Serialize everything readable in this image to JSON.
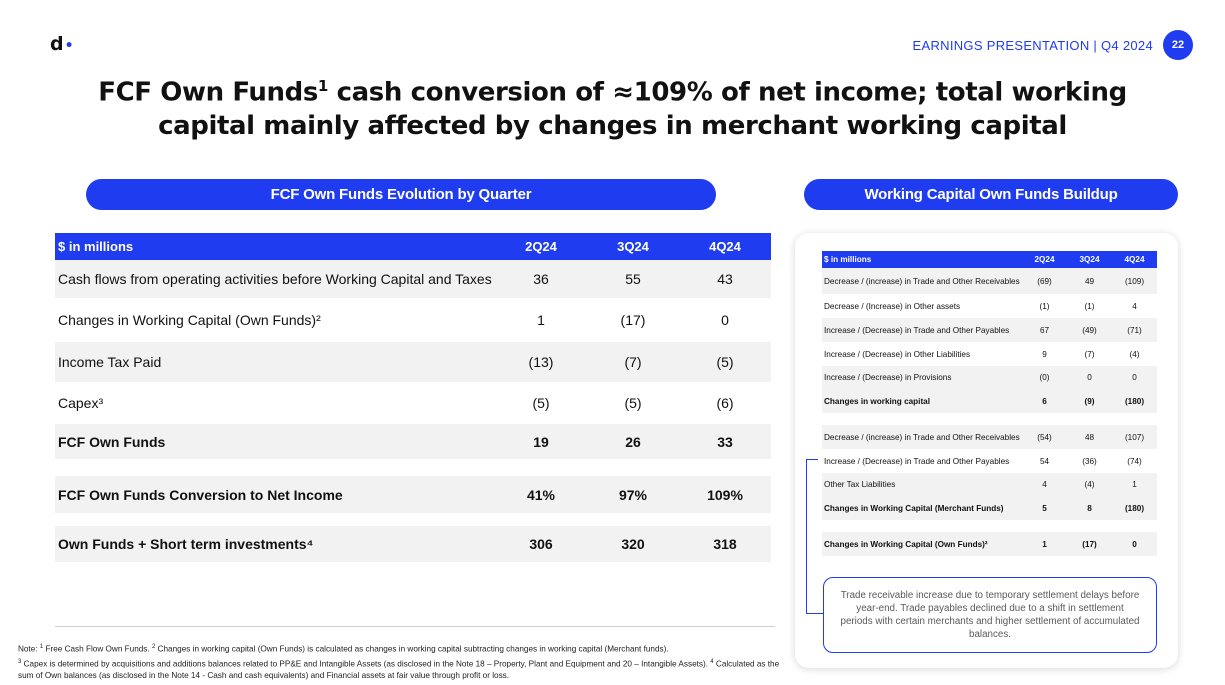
{
  "header": {
    "logo": "d",
    "label": "EARNINGS PRESENTATION | Q4 2024",
    "page_number": "22",
    "accent_color": "#1f3cf0"
  },
  "title": {
    "part1": "FCF Own Funds",
    "sup": "1",
    "part2": " cash conversion of ≈109% of net income; total working capital mainly affected by changes in merchant working capital"
  },
  "left": {
    "pill": "FCF Own Funds Evolution by Quarter",
    "header": {
      "label": "$ in millions",
      "cols": [
        "2Q24",
        "3Q24",
        "4Q24"
      ]
    },
    "rows": [
      {
        "label": "Cash flows from operating activities before Working Capital and Taxes",
        "values": [
          "36",
          "55",
          "43"
        ]
      },
      {
        "label": "Changes in Working Capital (Own Funds)²",
        "values": [
          "1",
          "(17)",
          "0"
        ]
      },
      {
        "label": "Income Tax Paid",
        "values": [
          "(13)",
          "(7)",
          "(5)"
        ]
      },
      {
        "label": "Capex³",
        "values": [
          "(5)",
          "(5)",
          "(6)"
        ]
      },
      {
        "label": "FCF Own Funds",
        "values": [
          "19",
          "26",
          "33"
        ]
      },
      {
        "label": "FCF Own Funds Conversion to Net Income",
        "values": [
          "41%",
          "97%",
          "109%"
        ]
      },
      {
        "label": "Own Funds + Short term investments⁴",
        "values": [
          "306",
          "320",
          "318"
        ]
      }
    ]
  },
  "note": {
    "prefix": "Note: ",
    "s1": "1",
    "t1": " Free Cash Flow Own Funds. ",
    "s2": "2",
    "t2": " Changes in working capital (Own Funds) is calculated as changes in working capital subtracting changes in working capital (Merchant funds).",
    "s3": "3",
    "t3": " Capex is determined by acquisitions and additions balances related to PP&E and Intangible Assets (as disclosed in the Note 18 – Property, Plant and Equipment and 20 – Intangible Assets). ",
    "s4": "4",
    "t4": " Calculated as the sum of Own balances (as disclosed in the Note 14 - Cash and cash equivalents) and Financial assets at fair value through profit or loss."
  },
  "right": {
    "pill": "Working Capital Own Funds Buildup",
    "header": {
      "label": "$ in millions",
      "cols": [
        "2Q24",
        "3Q24",
        "4Q24"
      ]
    },
    "rows": [
      {
        "label": "Decrease / (increase) in Trade and Other Receivables",
        "values": [
          "(69)",
          "49",
          "(109)"
        ]
      },
      {
        "label": "Decrease / (Increase) in Other assets",
        "values": [
          "(1)",
          "(1)",
          "4"
        ]
      },
      {
        "label": "Increase / (Decrease) in Trade and Other Payables",
        "values": [
          "67",
          "(49)",
          "(71)"
        ]
      },
      {
        "label": "Increase / (Decrease) in Other Liabilities",
        "values": [
          "9",
          "(7)",
          "(4)"
        ]
      },
      {
        "label": "Increase / (Decrease) in Provisions",
        "values": [
          "(0)",
          "0",
          "0"
        ]
      },
      {
        "label": "Changes in working capital",
        "values": [
          "6",
          "(9)",
          "(180)"
        ]
      },
      {
        "label": "Decrease / (increase) in Trade and Other Receivables",
        "values": [
          "(54)",
          "48",
          "(107)"
        ]
      },
      {
        "label": "Increase / (Decrease) in Trade and Other Payables",
        "values": [
          "54",
          "(36)",
          "(74)"
        ]
      },
      {
        "label": "Other Tax Liabilities",
        "values": [
          "4",
          "(4)",
          "1"
        ]
      },
      {
        "label": "Changes in Working Capital (Merchant Funds)",
        "values": [
          "5",
          "8",
          "(180)"
        ]
      },
      {
        "label": "Changes in Working Capital (Own Funds)²",
        "values": [
          "1",
          "(17)",
          "0"
        ]
      }
    ],
    "callout": "Trade receivable increase due to temporary settlement delays before year-end. Trade payables declined due to a shift in settlement periods with certain merchants and higher settlement of accumulated balances."
  }
}
